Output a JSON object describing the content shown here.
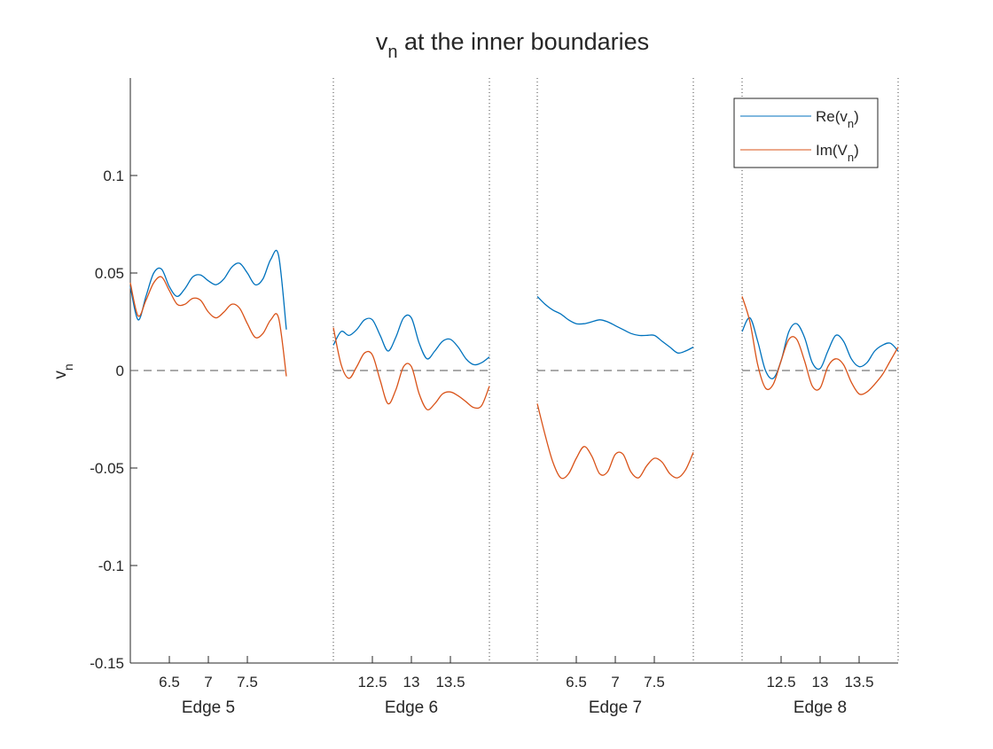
{
  "chart_data": {
    "type": "line",
    "title": "v_n at the inner boundaries",
    "title_main": "v",
    "title_sub": "n",
    "title_rest": " at the inner boundaries",
    "ylabel": "v_n",
    "ylabel_main": "v",
    "ylabel_sub": "n",
    "ylim": [
      -0.15,
      0.15
    ],
    "yticks": [
      0.1,
      0.05,
      0,
      -0.05,
      -0.1,
      -0.15
    ],
    "ytick_labels": [
      "0.1",
      "0.05",
      "0",
      "-0.05",
      "-0.1",
      "-0.15"
    ],
    "grid": false,
    "zero_line": "dashed",
    "legend": {
      "placement": "top-right",
      "entries": [
        {
          "name": "Re(v_n)",
          "main": "Re(v",
          "sub": "n",
          "close": ")",
          "color": "#0072BD"
        },
        {
          "name": "Im(V_n)",
          "main": "Im(V",
          "sub": "n",
          "close": ")",
          "color": "#D95319"
        }
      ]
    },
    "segments": [
      {
        "label": "Edge 5",
        "xlim": [
          6.0,
          8.0
        ],
        "xticks": [
          6.5,
          7,
          7.5
        ],
        "xtick_labels": [
          "6.5",
          "7",
          "7.5"
        ],
        "boundary_lines": false,
        "x_step": 0.1,
        "series": [
          {
            "name": "Re(v_n)",
            "values": [
              0.043,
              0.026,
              0.038,
              0.05,
              0.052,
              0.043,
              0.038,
              0.042,
              0.048,
              0.049,
              0.046,
              0.044,
              0.047,
              0.053,
              0.055,
              0.05,
              0.044,
              0.047,
              0.057,
              0.059,
              0.021
            ]
          },
          {
            "name": "Im(V_n)",
            "values": [
              0.045,
              0.028,
              0.036,
              0.045,
              0.048,
              0.041,
              0.034,
              0.034,
              0.037,
              0.036,
              0.03,
              0.027,
              0.03,
              0.034,
              0.032,
              0.024,
              0.017,
              0.019,
              0.026,
              0.027,
              -0.003
            ]
          }
        ]
      },
      {
        "label": "Edge 6",
        "xlim": [
          12.0,
          14.0
        ],
        "xticks": [
          12.5,
          13,
          13.5
        ],
        "xtick_labels": [
          "12.5",
          "13",
          "13.5"
        ],
        "boundary_lines": true,
        "x_step": 0.1,
        "series": [
          {
            "name": "Re(v_n)",
            "values": [
              0.013,
              0.02,
              0.018,
              0.021,
              0.026,
              0.026,
              0.018,
              0.01,
              0.017,
              0.027,
              0.027,
              0.014,
              0.006,
              0.01,
              0.015,
              0.016,
              0.012,
              0.006,
              0.003,
              0.004,
              0.007
            ]
          },
          {
            "name": "Im(V_n)",
            "values": [
              0.022,
              0.003,
              -0.004,
              0.002,
              0.009,
              0.008,
              -0.005,
              -0.017,
              -0.01,
              0.002,
              0.002,
              -0.012,
              -0.02,
              -0.017,
              -0.012,
              -0.011,
              -0.013,
              -0.016,
              -0.019,
              -0.018,
              -0.008
            ]
          }
        ]
      },
      {
        "label": "Edge 7",
        "xlim": [
          6.0,
          8.0
        ],
        "xticks": [
          6.5,
          7,
          7.5
        ],
        "xtick_labels": [
          "6.5",
          "7",
          "7.5"
        ],
        "boundary_lines": true,
        "x_step": 0.1,
        "series": [
          {
            "name": "Re(v_n)",
            "values": [
              0.038,
              0.034,
              0.031,
              0.029,
              0.026,
              0.024,
              0.024,
              0.025,
              0.026,
              0.025,
              0.023,
              0.021,
              0.019,
              0.018,
              0.018,
              0.018,
              0.015,
              0.012,
              0.009,
              0.01,
              0.012
            ]
          },
          {
            "name": "Im(V_n)",
            "values": [
              -0.017,
              -0.033,
              -0.047,
              -0.055,
              -0.053,
              -0.045,
              -0.039,
              -0.044,
              -0.053,
              -0.052,
              -0.043,
              -0.043,
              -0.052,
              -0.055,
              -0.049,
              -0.045,
              -0.047,
              -0.053,
              -0.055,
              -0.051,
              -0.042
            ]
          }
        ]
      },
      {
        "label": "Edge 8",
        "xlim": [
          12.0,
          14.0
        ],
        "xticks": [
          12.5,
          13,
          13.5
        ],
        "xtick_labels": [
          "12.5",
          "13",
          "13.5"
        ],
        "boundary_lines": true,
        "x_step": 0.1,
        "series": [
          {
            "name": "Re(v_n)",
            "values": [
              0.02,
              0.027,
              0.015,
              0.0,
              -0.004,
              0.005,
              0.02,
              0.024,
              0.017,
              0.004,
              0.001,
              0.01,
              0.018,
              0.015,
              0.006,
              0.002,
              0.004,
              0.01,
              0.013,
              0.014,
              0.01
            ]
          },
          {
            "name": "Im(V_n)",
            "values": [
              0.038,
              0.025,
              0.003,
              -0.009,
              -0.007,
              0.005,
              0.016,
              0.016,
              0.005,
              -0.008,
              -0.009,
              0.002,
              0.006,
              0.003,
              -0.006,
              -0.012,
              -0.011,
              -0.007,
              -0.002,
              0.005,
              0.012
            ]
          }
        ]
      }
    ]
  }
}
